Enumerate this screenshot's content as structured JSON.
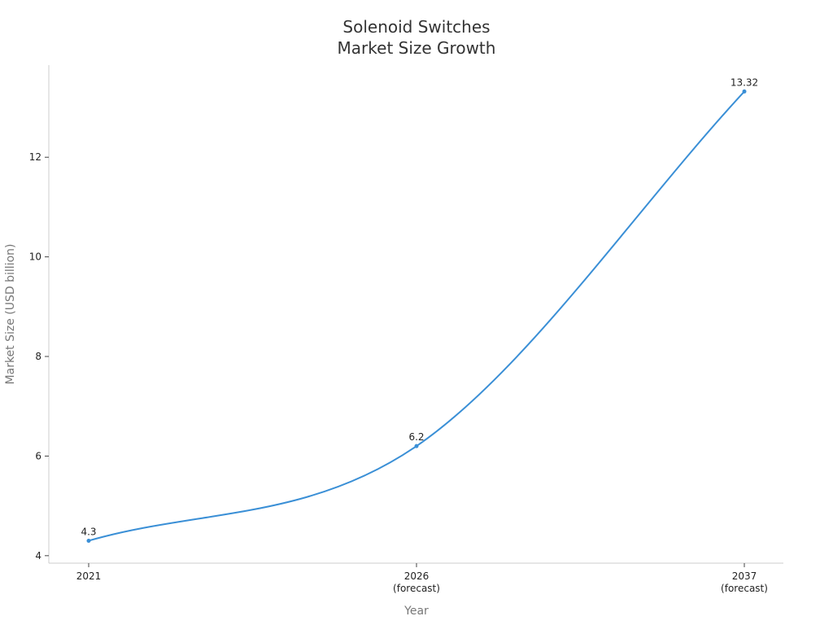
{
  "chart_data": {
    "type": "line",
    "title_lines": [
      "Solenoid Switches",
      "Market Size Growth"
    ],
    "xlabel": "Year",
    "ylabel": "Market Size (USD billion)",
    "categories": [
      [
        "2021"
      ],
      [
        "2026",
        "(forecast)"
      ],
      [
        "2037",
        "(forecast)"
      ]
    ],
    "series": [
      {
        "values": [
          4.3,
          6.2,
          13.32
        ],
        "color": "#3a8fd6"
      }
    ],
    "data_labels": [
      "4.3",
      "6.2",
      "13.32"
    ],
    "yticks": [
      4,
      6,
      8,
      10,
      12
    ],
    "ylim": [
      3.85,
      13.85
    ],
    "grid": false,
    "legend": "none"
  }
}
